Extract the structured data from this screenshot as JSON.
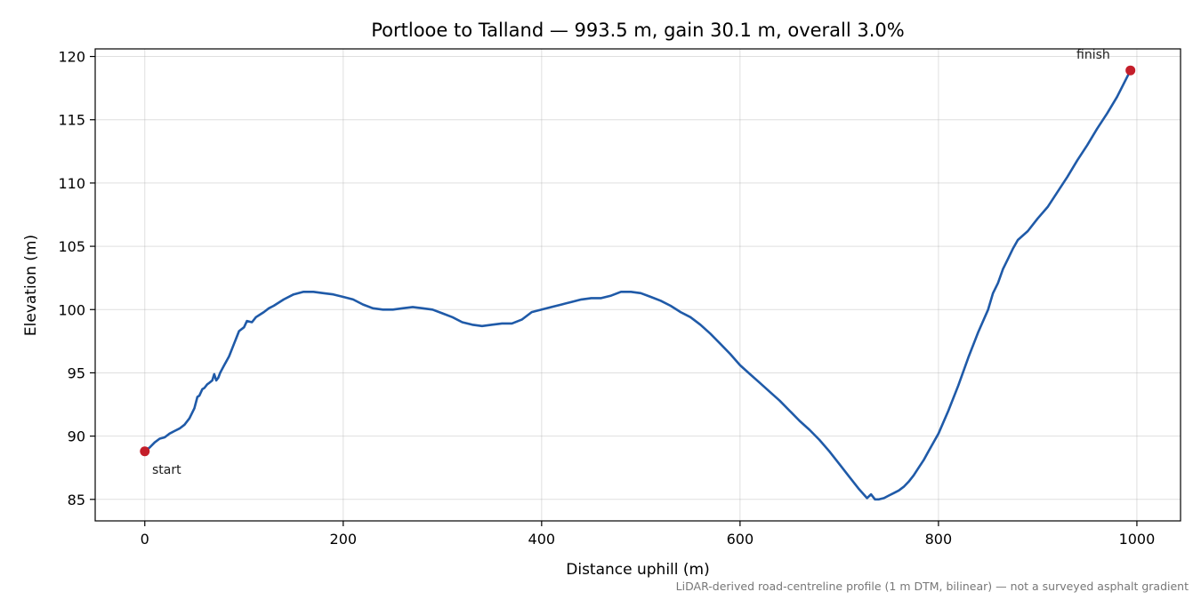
{
  "chart_data": {
    "type": "line",
    "title": "Portlooe to Talland — 993.5 m, gain 30.1 m, overall 3.0%",
    "xlabel": "Distance uphill (m)",
    "ylabel": "Elevation (m)",
    "xlim": [
      -50,
      1044
    ],
    "ylim": [
      83.3,
      120.6
    ],
    "xticks": [
      0,
      200,
      400,
      600,
      800,
      1000
    ],
    "yticks": [
      85,
      90,
      95,
      100,
      105,
      110,
      115,
      120
    ],
    "grid": true,
    "line_color": "#1f5aa8",
    "marker_color": "#c41e2a",
    "series": [
      {
        "x": [
          0,
          5,
          10,
          15,
          20,
          25,
          30,
          35,
          40,
          45,
          50,
          53,
          55,
          58,
          60,
          63,
          65,
          68,
          70,
          72,
          74,
          76,
          78,
          80,
          85,
          90,
          95,
          100,
          103,
          108,
          112,
          116,
          120,
          125,
          130,
          140,
          150,
          160,
          170,
          180,
          190,
          200,
          210,
          220,
          230,
          240,
          250,
          260,
          270,
          280,
          290,
          300,
          310,
          320,
          330,
          340,
          350,
          360,
          370,
          380,
          390,
          400,
          410,
          420,
          430,
          440,
          450,
          460,
          470,
          480,
          490,
          500,
          510,
          520,
          530,
          540,
          550,
          560,
          570,
          580,
          590,
          600,
          610,
          620,
          630,
          640,
          650,
          660,
          670,
          680,
          690,
          700,
          710,
          720,
          728,
          732,
          736,
          740,
          745,
          750,
          755,
          760,
          765,
          770,
          775,
          780,
          785,
          790,
          795,
          800,
          810,
          820,
          830,
          840,
          850,
          855,
          860,
          865,
          870,
          875,
          880,
          890,
          900,
          910,
          920,
          930,
          940,
          950,
          960,
          970,
          980,
          993.5
        ],
        "y": [
          88.8,
          89.1,
          89.5,
          89.8,
          89.9,
          90.2,
          90.4,
          90.6,
          90.9,
          91.4,
          92.2,
          93.1,
          93.2,
          93.7,
          93.8,
          94.1,
          94.2,
          94.4,
          94.9,
          94.4,
          94.6,
          95.0,
          95.3,
          95.6,
          96.3,
          97.3,
          98.3,
          98.6,
          99.1,
          99.0,
          99.4,
          99.6,
          99.8,
          100.1,
          100.3,
          100.8,
          101.2,
          101.4,
          101.4,
          101.3,
          101.2,
          101.0,
          100.8,
          100.4,
          100.1,
          100.0,
          100.0,
          100.1,
          100.2,
          100.1,
          100.0,
          99.7,
          99.4,
          99.0,
          98.8,
          98.7,
          98.8,
          98.9,
          98.9,
          99.2,
          99.8,
          100.0,
          100.2,
          100.4,
          100.6,
          100.8,
          100.9,
          100.9,
          101.1,
          101.4,
          101.4,
          101.3,
          101.0,
          100.7,
          100.3,
          99.8,
          99.4,
          98.8,
          98.1,
          97.3,
          96.5,
          95.6,
          94.9,
          94.2,
          93.5,
          92.8,
          92.0,
          91.2,
          90.5,
          89.7,
          88.8,
          87.8,
          86.8,
          85.8,
          85.1,
          85.4,
          85.0,
          85.0,
          85.1,
          85.3,
          85.5,
          85.7,
          86.0,
          86.4,
          86.9,
          87.5,
          88.1,
          88.8,
          89.5,
          90.2,
          92.0,
          94.0,
          96.2,
          98.2,
          100.0,
          101.3,
          102.1,
          103.2,
          104.0,
          104.8,
          105.5,
          106.2,
          107.2,
          108.1,
          109.3,
          110.5,
          111.8,
          113.0,
          114.3,
          115.5,
          116.8,
          118.9
        ]
      }
    ],
    "annotations": [
      {
        "text": "start",
        "x": 0,
        "y": 88.8
      },
      {
        "text": "finish",
        "x": 993.5,
        "y": 118.9
      }
    ]
  },
  "caption": "LiDAR-derived road-centreline profile (1 m DTM, bilinear) — not a surveyed asphalt gradient"
}
